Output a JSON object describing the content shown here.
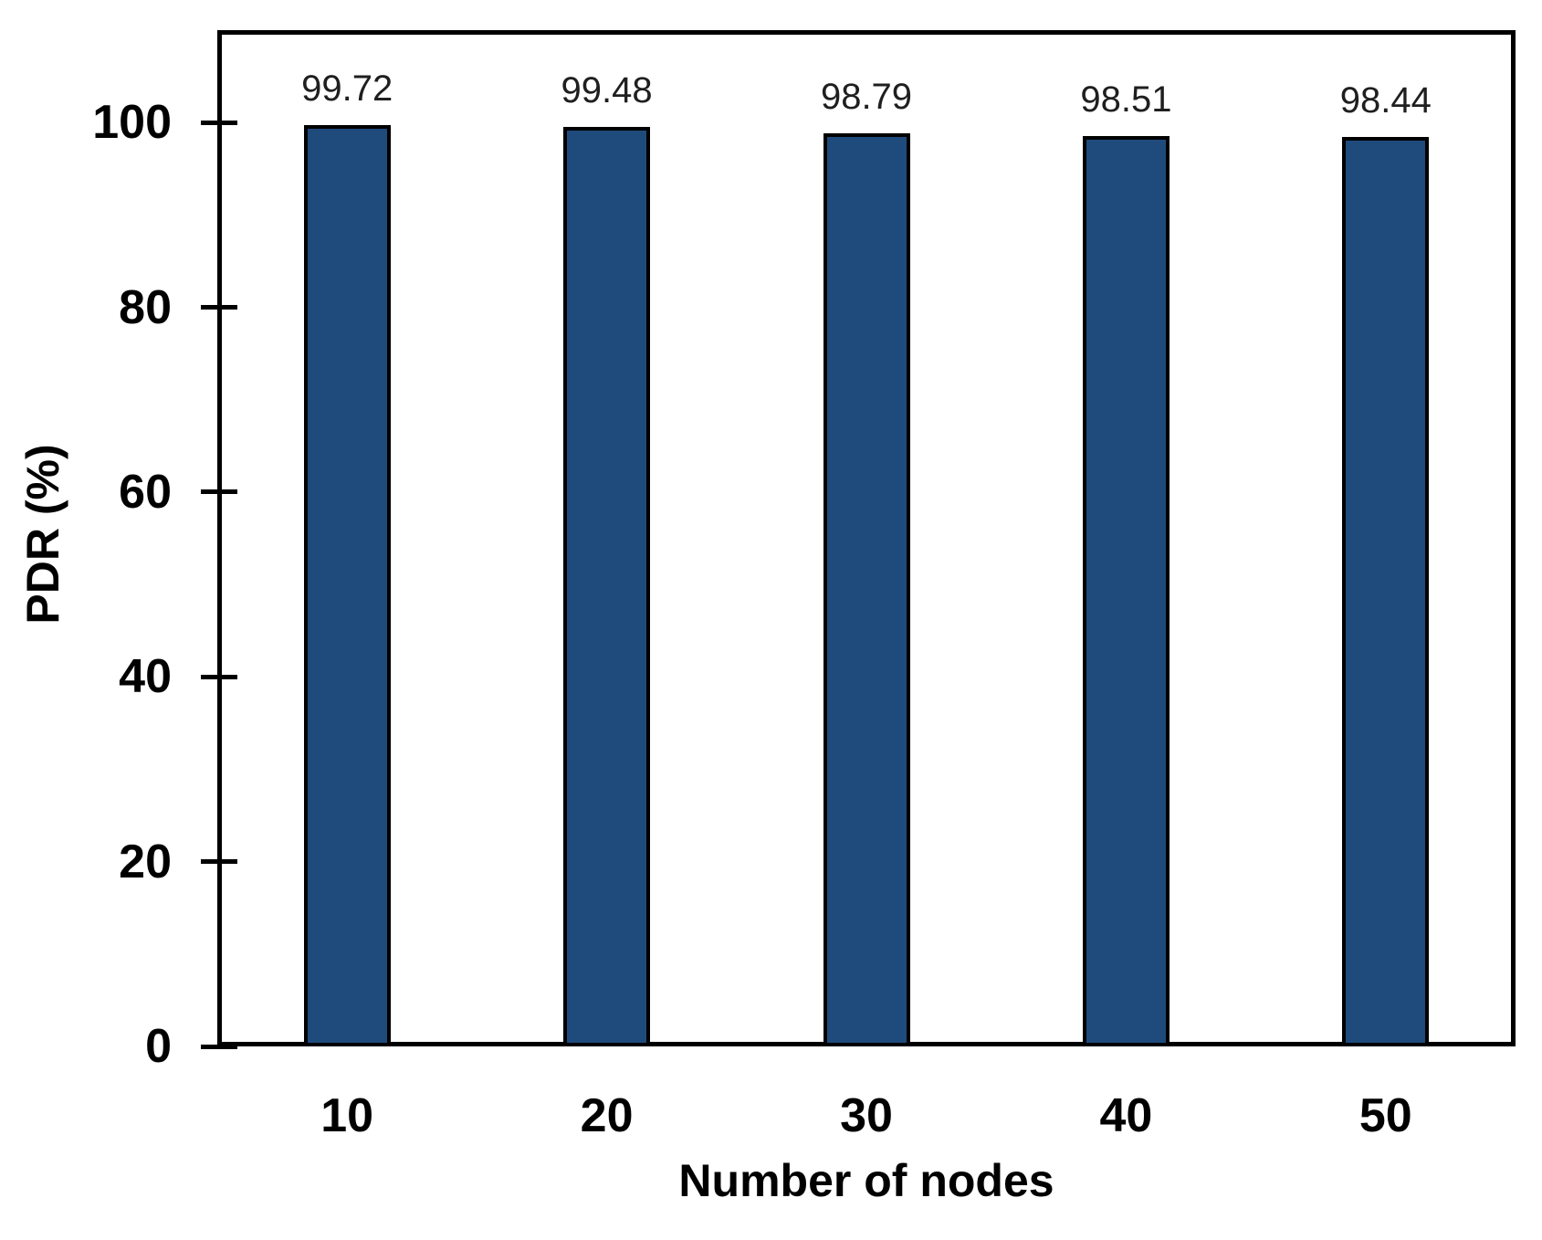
{
  "chart_data": {
    "type": "bar",
    "title": "",
    "categories": [
      "10",
      "20",
      "30",
      "40",
      "50"
    ],
    "values": [
      99.72,
      99.48,
      98.79,
      98.51,
      98.44
    ],
    "data_labels": [
      "99.72",
      "99.48",
      "98.79",
      "98.51",
      "98.44"
    ],
    "xlabel": "Number of nodes",
    "ylabel": "PDR (%)",
    "ylim": [
      0,
      110
    ],
    "yticks": [
      0,
      20,
      40,
      60,
      80,
      100
    ],
    "grid": false,
    "legend": false,
    "bar_color": "#1F4B7C",
    "bar_border_color": "#000000",
    "axis_color": "#000000",
    "text_color": "#000000",
    "background_color": "#FFFFFF"
  }
}
